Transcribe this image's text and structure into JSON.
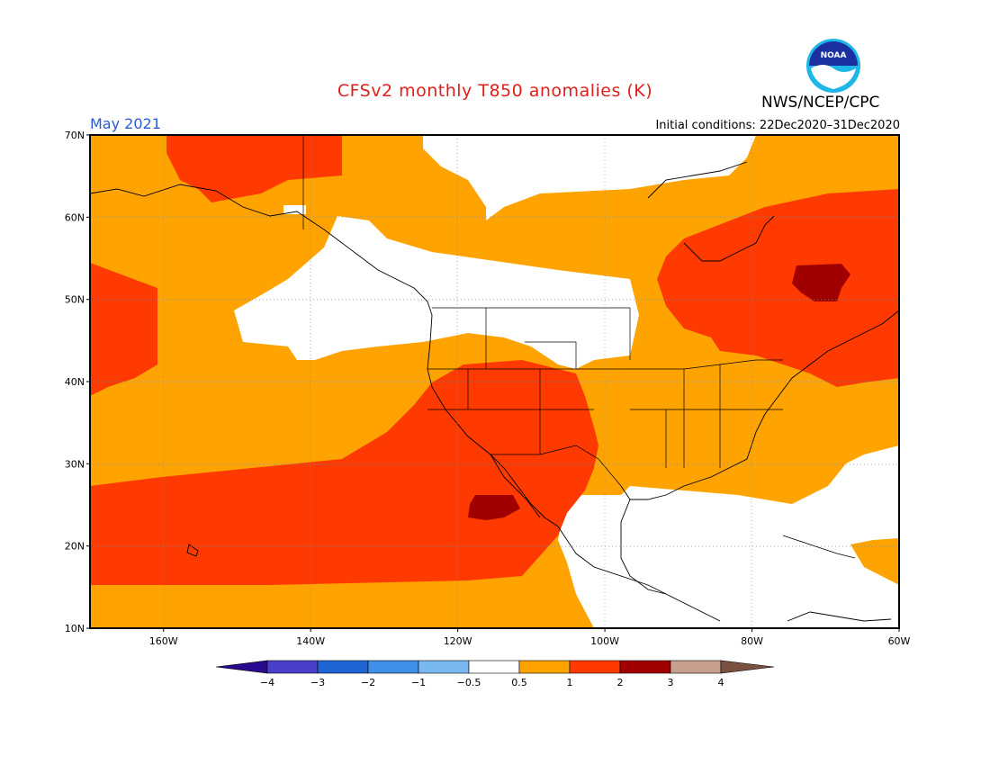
{
  "title": "CFSv2 monthly T850 anomalies (K)",
  "month": "May 2021",
  "initial_conditions": "Initial conditions: 22Dec2020–31Dec2020",
  "agency": "NWS/NCEP/CPC",
  "logo_text": "NOAA",
  "map": {
    "lon_range": [
      -170,
      -60
    ],
    "lat_range": [
      10,
      70
    ],
    "lat_ticks": [
      "10N",
      "20N",
      "30N",
      "40N",
      "50N",
      "60N",
      "70N"
    ],
    "lon_ticks": [
      "160W",
      "140W",
      "120W",
      "100W",
      "80W",
      "60W"
    ],
    "grid": true
  },
  "colorbar": {
    "labels": [
      "−4",
      "−3",
      "−2",
      "−1",
      "−0.5",
      "0.5",
      "1",
      "2",
      "3",
      "4"
    ],
    "colors": {
      "lt_-4": "#2a0a8f",
      "-4_-3": "#4a3fc8",
      "-3_-2": "#1e64d4",
      "-2_-1": "#3d8fe8",
      "-1_-0.5": "#7ab8f0",
      "-0.5_0.5": "#ffffff",
      "0.5_1": "#ffa300",
      "1_2": "#ff3a00",
      "2_3": "#a00000",
      "3_4": "#c8a090",
      "gt_4": "#7a5040"
    }
  }
}
